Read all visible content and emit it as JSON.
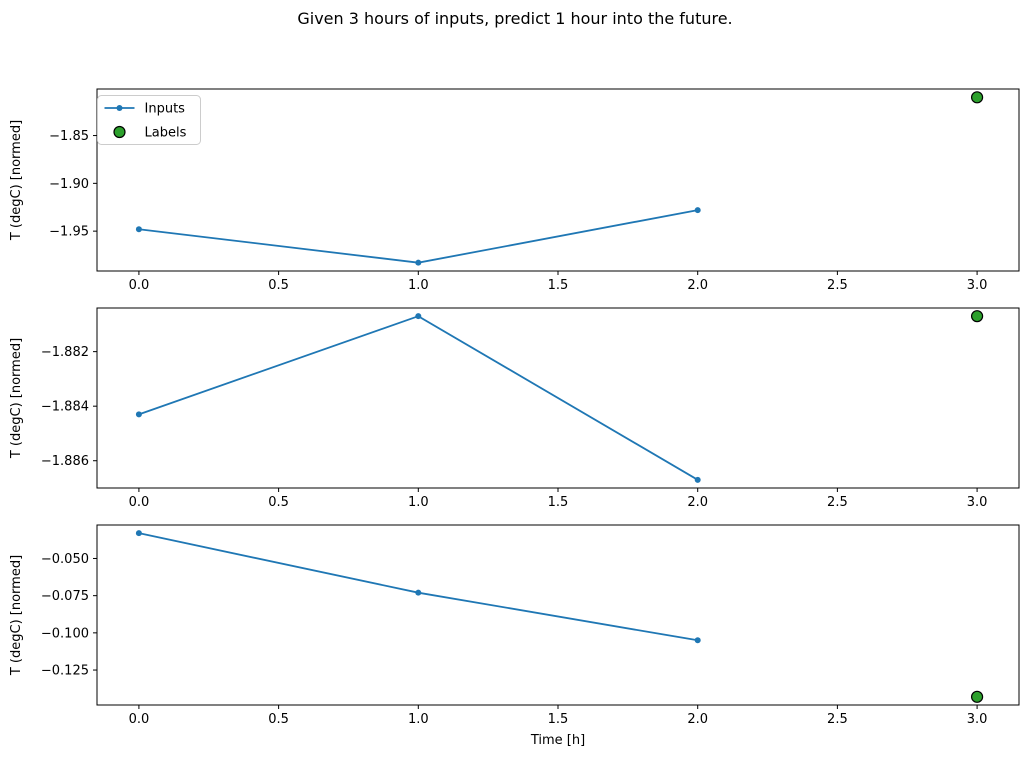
{
  "figure": {
    "title": "Given 3 hours of inputs, predict 1 hour into the future.",
    "background": "#ffffff"
  },
  "colors": {
    "inputs_line": "#1f77b4",
    "labels_marker_fill": "#2ca02c",
    "labels_marker_edge": "#000000",
    "axis": "#000000",
    "legend_border": "#cccccc"
  },
  "legend": {
    "items": [
      {
        "label": "Inputs",
        "type": "line-marker"
      },
      {
        "label": "Labels",
        "type": "circle"
      }
    ]
  },
  "chart_data": [
    {
      "type": "line",
      "title": "",
      "xlabel": "",
      "ylabel": "T (degC) [normed]",
      "xlim": [
        -0.15,
        3.15
      ],
      "ylim": [
        -1.9917,
        -1.8013
      ],
      "xticks": [
        0.0,
        0.5,
        1.0,
        1.5,
        2.0,
        2.5,
        3.0
      ],
      "xtick_labels": [
        "0.0",
        "0.5",
        "1.0",
        "1.5",
        "2.0",
        "2.5",
        "3.0"
      ],
      "yticks": [
        -1.85,
        -1.9,
        -1.95
      ],
      "ytick_labels": [
        "−1.85",
        "−1.90",
        "−1.95"
      ],
      "grid": false,
      "legend": true,
      "legend_position": "upper-left",
      "series": [
        {
          "name": "Inputs",
          "type": "line-marker",
          "x": [
            0,
            1,
            2
          ],
          "y": [
            -1.948,
            -1.983,
            -1.928
          ]
        },
        {
          "name": "Labels",
          "type": "scatter",
          "x": [
            3
          ],
          "y": [
            -1.81
          ]
        }
      ]
    },
    {
      "type": "line",
      "title": "",
      "xlabel": "",
      "ylabel": "T (degC) [normed]",
      "xlim": [
        -0.15,
        3.15
      ],
      "ylim": [
        -1.887,
        -1.8804
      ],
      "xticks": [
        0.0,
        0.5,
        1.0,
        1.5,
        2.0,
        2.5,
        3.0
      ],
      "xtick_labels": [
        "0.0",
        "0.5",
        "1.0",
        "1.5",
        "2.0",
        "2.5",
        "3.0"
      ],
      "yticks": [
        -1.882,
        -1.884,
        -1.886
      ],
      "ytick_labels": [
        "−1.882",
        "−1.884",
        "−1.886"
      ],
      "grid": false,
      "legend": false,
      "series": [
        {
          "name": "Inputs",
          "type": "line-marker",
          "x": [
            0,
            1,
            2
          ],
          "y": [
            -1.8843,
            -1.8807,
            -1.8867
          ]
        },
        {
          "name": "Labels",
          "type": "scatter",
          "x": [
            3
          ],
          "y": [
            -1.8807
          ]
        }
      ]
    },
    {
      "type": "line",
      "title": "",
      "xlabel": "Time [h]",
      "ylabel": "T (degC) [normed]",
      "xlim": [
        -0.15,
        3.15
      ],
      "ylim": [
        -0.1485,
        -0.0275
      ],
      "xticks": [
        0.0,
        0.5,
        1.0,
        1.5,
        2.0,
        2.5,
        3.0
      ],
      "xtick_labels": [
        "0.0",
        "0.5",
        "1.0",
        "1.5",
        "2.0",
        "2.5",
        "3.0"
      ],
      "yticks": [
        -0.05,
        -0.075,
        -0.1,
        -0.125
      ],
      "ytick_labels": [
        "−0.050",
        "−0.075",
        "−0.100",
        "−0.125"
      ],
      "grid": false,
      "legend": false,
      "series": [
        {
          "name": "Inputs",
          "type": "line-marker",
          "x": [
            0,
            1,
            2
          ],
          "y": [
            -0.033,
            -0.073,
            -0.105
          ]
        },
        {
          "name": "Labels",
          "type": "scatter",
          "x": [
            3
          ],
          "y": [
            -0.143
          ]
        }
      ]
    }
  ]
}
